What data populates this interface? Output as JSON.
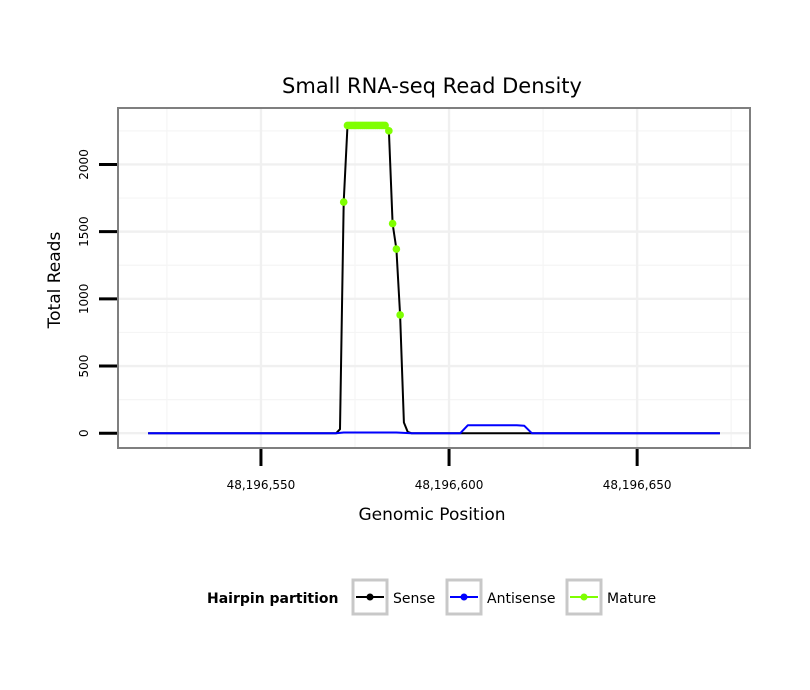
{
  "chart_data": {
    "type": "line",
    "title": "Small RNA-seq Read Density",
    "xlabel": "Genomic Position",
    "ylabel": "Total Reads",
    "xlim": [
      48196512,
      48196680
    ],
    "ylim": [
      -110,
      2420
    ],
    "x_ticks": [
      48196550,
      48196600,
      48196650
    ],
    "x_tick_labels": [
      "48,196,550",
      "48,196,600",
      "48,196,650"
    ],
    "y_ticks": [
      0,
      500,
      1000,
      1500,
      2000
    ],
    "y_tick_labels": [
      "0",
      "500",
      "1000",
      "1500",
      "2000"
    ],
    "grid": true,
    "legend": {
      "title": "Hairpin partition",
      "position": "bottom",
      "entries": [
        "Sense",
        "Antisense",
        "Mature"
      ]
    },
    "series": [
      {
        "name": "Sense",
        "color": "#000000",
        "x": [
          48196520,
          48196570,
          48196571,
          48196572,
          48196573,
          48196583,
          48196584,
          48196585,
          48196586,
          48196587,
          48196588,
          48196589,
          48196590,
          48196591,
          48196672
        ],
        "y": [
          0,
          0,
          30,
          1720,
          2290,
          2290,
          2250,
          1560,
          1370,
          880,
          80,
          10,
          0,
          0,
          0
        ]
      },
      {
        "name": "Antisense",
        "color": "#0000ff",
        "x": [
          48196520,
          48196570,
          48196572,
          48196586,
          48196590,
          48196603,
          48196605,
          48196618,
          48196620,
          48196622,
          48196672
        ],
        "y": [
          0,
          0,
          5,
          5,
          0,
          0,
          60,
          60,
          55,
          0,
          0
        ]
      },
      {
        "name": "Mature",
        "color": "#7fff00",
        "x": [
          48196572,
          48196573,
          48196573.5,
          48196574,
          48196574.5,
          48196575,
          48196575.5,
          48196576,
          48196576.5,
          48196577,
          48196577.5,
          48196578,
          48196578.5,
          48196579,
          48196579.5,
          48196580,
          48196580.5,
          48196581,
          48196581.5,
          48196582,
          48196582.5,
          48196583,
          48196584,
          48196585,
          48196586,
          48196587
        ],
        "y": [
          1720,
          2290,
          2290,
          2290,
          2290,
          2290,
          2290,
          2290,
          2290,
          2290,
          2290,
          2290,
          2290,
          2290,
          2290,
          2290,
          2290,
          2290,
          2290,
          2290,
          2290,
          2290,
          2250,
          1560,
          1370,
          880
        ]
      }
    ]
  }
}
